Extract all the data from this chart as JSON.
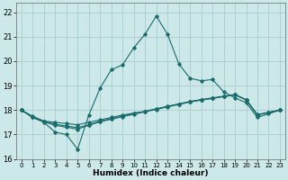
{
  "title": "",
  "xlabel": "Humidex (Indice chaleur)",
  "ylabel": "",
  "xlim": [
    -0.5,
    23.5
  ],
  "ylim": [
    16.0,
    22.4
  ],
  "yticks": [
    16,
    17,
    18,
    19,
    20,
    21,
    22
  ],
  "xticks": [
    0,
    1,
    2,
    3,
    4,
    5,
    6,
    7,
    8,
    9,
    10,
    11,
    12,
    13,
    14,
    15,
    16,
    17,
    18,
    19,
    20,
    21,
    22,
    23
  ],
  "bg_color": "#cce8e8",
  "grid_color": "#aacccc",
  "line_color": "#1a6b6b",
  "lines": [
    {
      "x": [
        0,
        1,
        2,
        3,
        4,
        5,
        6,
        7,
        8,
        9,
        10,
        11,
        12,
        13,
        14,
        15,
        16,
        17,
        18,
        19,
        20,
        21,
        22,
        23
      ],
      "y": [
        18.0,
        17.7,
        17.5,
        17.1,
        17.0,
        16.4,
        17.8,
        18.9,
        19.65,
        19.85,
        20.55,
        21.1,
        21.85,
        21.1,
        19.9,
        19.3,
        19.2,
        19.25,
        18.75,
        18.5,
        18.3,
        17.7,
        17.85,
        18.0
      ]
    },
    {
      "x": [
        0,
        1,
        2,
        3,
        4,
        5,
        6,
        7,
        8,
        9,
        10,
        11,
        12,
        13,
        14,
        15,
        16,
        17,
        18,
        19,
        20,
        21,
        22,
        23
      ],
      "y": [
        18.0,
        17.75,
        17.55,
        17.5,
        17.45,
        17.4,
        17.5,
        17.6,
        17.7,
        17.8,
        17.88,
        17.95,
        18.05,
        18.15,
        18.25,
        18.35,
        18.42,
        18.48,
        18.55,
        18.62,
        18.42,
        17.8,
        17.9,
        18.0
      ]
    },
    {
      "x": [
        0,
        1,
        2,
        3,
        4,
        5,
        6,
        7,
        8,
        9,
        10,
        11,
        12,
        13,
        14,
        15,
        16,
        17,
        18,
        19,
        20,
        21,
        22,
        23
      ],
      "y": [
        18.0,
        17.72,
        17.55,
        17.42,
        17.35,
        17.28,
        17.4,
        17.55,
        17.65,
        17.75,
        17.85,
        17.95,
        18.05,
        18.15,
        18.25,
        18.35,
        18.43,
        18.5,
        18.57,
        18.64,
        18.43,
        17.82,
        17.91,
        18.0
      ]
    },
    {
      "x": [
        0,
        1,
        2,
        3,
        4,
        5,
        6,
        7,
        8,
        9,
        10,
        11,
        12,
        13,
        14,
        15,
        16,
        17,
        18,
        19,
        20,
        21,
        22,
        23
      ],
      "y": [
        18.0,
        17.7,
        17.52,
        17.38,
        17.3,
        17.22,
        17.38,
        17.52,
        17.63,
        17.73,
        17.83,
        17.93,
        18.03,
        18.13,
        18.23,
        18.33,
        18.41,
        18.48,
        18.56,
        18.63,
        18.41,
        17.8,
        17.9,
        18.0
      ]
    }
  ]
}
